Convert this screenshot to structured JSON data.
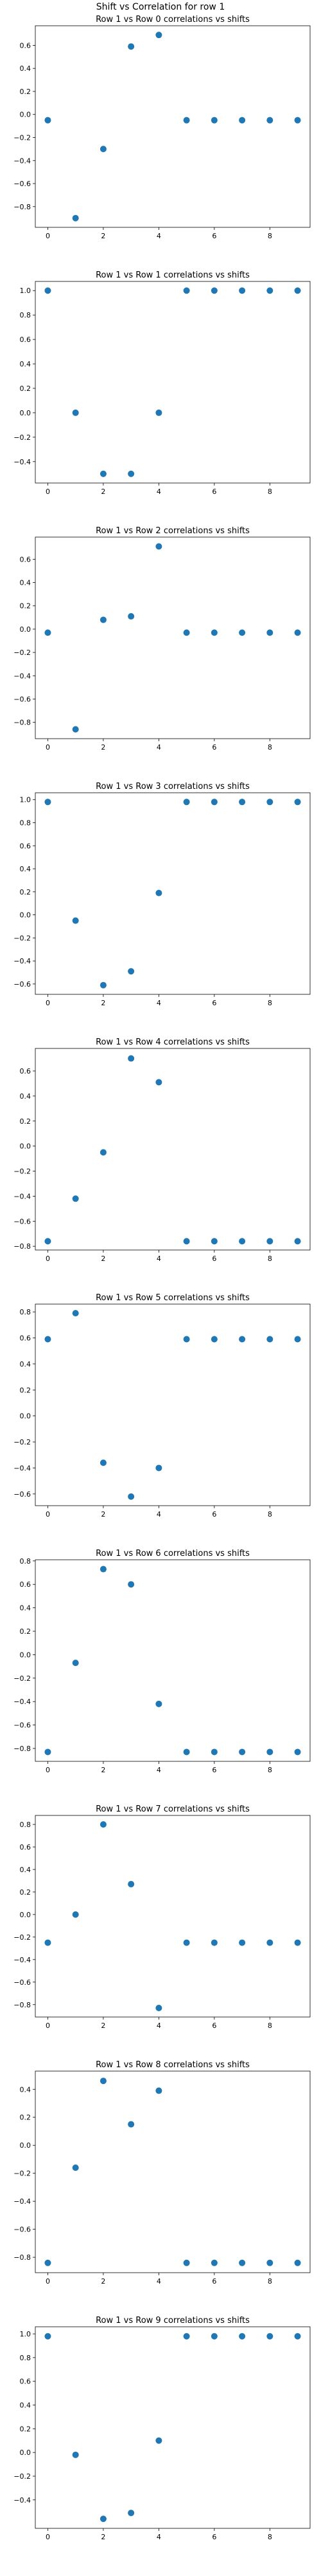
{
  "figure": {
    "suptitle": "Shift vs Correlation for row 1",
    "marker_color": "#1f77b4"
  },
  "chart_data": [
    {
      "type": "scatter",
      "title": "Row 1 vs Row 0 correlations vs shifts",
      "x": [
        0,
        1,
        2,
        3,
        4,
        5,
        6,
        7,
        8,
        9
      ],
      "y": [
        -0.05,
        -0.9,
        -0.3,
        0.59,
        0.69,
        -0.05,
        -0.05,
        -0.05,
        -0.05,
        -0.05
      ],
      "xlim": [
        -0.45,
        9.45
      ],
      "ylim": [
        -0.98,
        0.77
      ],
      "xticks": [
        0,
        2,
        4,
        6,
        8
      ],
      "yticks": [
        -0.8,
        -0.6,
        -0.4,
        -0.2,
        0.0,
        0.2,
        0.4,
        0.6
      ],
      "ytick_labels": [
        "−0.8",
        "−0.6",
        "−0.4",
        "−0.2",
        "0.0",
        "0.2",
        "0.4",
        "0.6"
      ]
    },
    {
      "type": "scatter",
      "title": "Row 1 vs Row 1 correlations vs shifts",
      "x": [
        0,
        1,
        2,
        3,
        4,
        5,
        6,
        7,
        8,
        9
      ],
      "y": [
        1.0,
        0.0,
        -0.5,
        -0.5,
        0.0,
        1.0,
        1.0,
        1.0,
        1.0,
        1.0
      ],
      "xlim": [
        -0.45,
        9.45
      ],
      "ylim": [
        -0.575,
        1.075
      ],
      "xticks": [
        0,
        2,
        4,
        6,
        8
      ],
      "yticks": [
        -0.4,
        -0.2,
        0.0,
        0.2,
        0.4,
        0.6,
        0.8,
        1.0
      ],
      "ytick_labels": [
        "−0.4",
        "−0.2",
        "0.0",
        "0.2",
        "0.4",
        "0.6",
        "0.8",
        "1.0"
      ]
    },
    {
      "type": "scatter",
      "title": "Row 1 vs Row 2 correlations vs shifts",
      "x": [
        0,
        1,
        2,
        3,
        4,
        5,
        6,
        7,
        8,
        9
      ],
      "y": [
        -0.03,
        -0.86,
        0.08,
        0.11,
        0.71,
        -0.03,
        -0.03,
        -0.03,
        -0.03,
        -0.03
      ],
      "xlim": [
        -0.45,
        9.45
      ],
      "ylim": [
        -0.94,
        0.79
      ],
      "xticks": [
        0,
        2,
        4,
        6,
        8
      ],
      "yticks": [
        -0.8,
        -0.6,
        -0.4,
        -0.2,
        0.0,
        0.2,
        0.4,
        0.6
      ],
      "ytick_labels": [
        "−0.8",
        "−0.6",
        "−0.4",
        "−0.2",
        "0.0",
        "0.2",
        "0.4",
        "0.6"
      ]
    },
    {
      "type": "scatter",
      "title": "Row 1 vs Row 3 correlations vs shifts",
      "x": [
        0,
        1,
        2,
        3,
        4,
        5,
        6,
        7,
        8,
        9
      ],
      "y": [
        0.98,
        -0.05,
        -0.61,
        -0.49,
        0.19,
        0.98,
        0.98,
        0.98,
        0.98,
        0.98
      ],
      "xlim": [
        -0.45,
        9.45
      ],
      "ylim": [
        -0.69,
        1.06
      ],
      "xticks": [
        0,
        2,
        4,
        6,
        8
      ],
      "yticks": [
        -0.6,
        -0.4,
        -0.2,
        0.0,
        0.2,
        0.4,
        0.6,
        0.8,
        1.0
      ],
      "ytick_labels": [
        "−0.6",
        "−0.4",
        "−0.2",
        "0.0",
        "0.2",
        "0.4",
        "0.6",
        "0.8",
        "1.0"
      ]
    },
    {
      "type": "scatter",
      "title": "Row 1 vs Row 4 correlations vs shifts",
      "x": [
        0,
        1,
        2,
        3,
        4,
        5,
        6,
        7,
        8,
        9
      ],
      "y": [
        -0.76,
        -0.42,
        -0.05,
        0.7,
        0.51,
        -0.76,
        -0.76,
        -0.76,
        -0.76,
        -0.76
      ],
      "xlim": [
        -0.45,
        9.45
      ],
      "ylim": [
        -0.83,
        0.78
      ],
      "xticks": [
        0,
        2,
        4,
        6,
        8
      ],
      "yticks": [
        -0.8,
        -0.6,
        -0.4,
        -0.2,
        0.0,
        0.2,
        0.4,
        0.6
      ],
      "ytick_labels": [
        "−0.8",
        "−0.6",
        "−0.4",
        "−0.2",
        "0.0",
        "0.2",
        "0.4",
        "0.6"
      ]
    },
    {
      "type": "scatter",
      "title": "Row 1 vs Row 5 correlations vs shifts",
      "x": [
        0,
        1,
        2,
        3,
        4,
        5,
        6,
        7,
        8,
        9
      ],
      "y": [
        0.59,
        0.79,
        -0.36,
        -0.62,
        -0.4,
        0.59,
        0.59,
        0.59,
        0.59,
        0.59
      ],
      "xlim": [
        -0.45,
        9.45
      ],
      "ylim": [
        -0.69,
        0.86
      ],
      "xticks": [
        0,
        2,
        4,
        6,
        8
      ],
      "yticks": [
        -0.6,
        -0.4,
        -0.2,
        0.0,
        0.2,
        0.4,
        0.6,
        0.8
      ],
      "ytick_labels": [
        "−0.6",
        "−0.4",
        "−0.2",
        "0.0",
        "0.2",
        "0.4",
        "0.6",
        "0.8"
      ]
    },
    {
      "type": "scatter",
      "title": "Row 1 vs Row 6 correlations vs shifts",
      "x": [
        0,
        1,
        2,
        3,
        4,
        5,
        6,
        7,
        8,
        9
      ],
      "y": [
        -0.83,
        -0.07,
        0.73,
        0.6,
        -0.42,
        -0.83,
        -0.83,
        -0.83,
        -0.83,
        -0.83
      ],
      "xlim": [
        -0.45,
        9.45
      ],
      "ylim": [
        -0.91,
        0.81
      ],
      "xticks": [
        0,
        2,
        4,
        6,
        8
      ],
      "yticks": [
        -0.8,
        -0.6,
        -0.4,
        -0.2,
        0.0,
        0.2,
        0.4,
        0.6,
        0.8
      ],
      "ytick_labels": [
        "−0.8",
        "−0.6",
        "−0.4",
        "−0.2",
        "0.0",
        "0.2",
        "0.4",
        "0.6",
        "0.8"
      ]
    },
    {
      "type": "scatter",
      "title": "Row 1 vs Row 7 correlations vs shifts",
      "x": [
        0,
        1,
        2,
        3,
        4,
        5,
        6,
        7,
        8,
        9
      ],
      "y": [
        -0.25,
        0.0,
        0.8,
        0.27,
        -0.83,
        -0.25,
        -0.25,
        -0.25,
        -0.25,
        -0.25
      ],
      "xlim": [
        -0.45,
        9.45
      ],
      "ylim": [
        -0.91,
        0.88
      ],
      "xticks": [
        0,
        2,
        4,
        6,
        8
      ],
      "yticks": [
        -0.8,
        -0.6,
        -0.4,
        -0.2,
        0.0,
        0.2,
        0.4,
        0.6,
        0.8
      ],
      "ytick_labels": [
        "−0.8",
        "−0.6",
        "−0.4",
        "−0.2",
        "0.0",
        "0.2",
        "0.4",
        "0.6",
        "0.8"
      ]
    },
    {
      "type": "scatter",
      "title": "Row 1 vs Row 8 correlations vs shifts",
      "x": [
        0,
        1,
        2,
        3,
        4,
        5,
        6,
        7,
        8,
        9
      ],
      "y": [
        -0.84,
        -0.16,
        0.46,
        0.15,
        0.39,
        -0.84,
        -0.84,
        -0.84,
        -0.84,
        -0.84
      ],
      "xlim": [
        -0.45,
        9.45
      ],
      "ylim": [
        -0.91,
        0.53
      ],
      "xticks": [
        0,
        2,
        4,
        6,
        8
      ],
      "yticks": [
        -0.8,
        -0.6,
        -0.4,
        -0.2,
        0.0,
        0.2,
        0.4
      ],
      "ytick_labels": [
        "−0.8",
        "−0.6",
        "−0.4",
        "−0.2",
        "0.0",
        "0.2",
        "0.4"
      ]
    },
    {
      "type": "scatter",
      "title": "Row 1 vs Row 9 correlations vs shifts",
      "x": [
        0,
        1,
        2,
        3,
        4,
        5,
        6,
        7,
        8,
        9
      ],
      "y": [
        0.98,
        -0.02,
        -0.56,
        -0.51,
        0.1,
        0.98,
        0.98,
        0.98,
        0.98,
        0.98
      ],
      "xlim": [
        -0.45,
        9.45
      ],
      "ylim": [
        -0.64,
        1.06
      ],
      "xticks": [
        0,
        2,
        4,
        6,
        8
      ],
      "yticks": [
        -0.4,
        -0.2,
        0.0,
        0.2,
        0.4,
        0.6,
        0.8,
        1.0
      ],
      "ytick_labels": [
        "−0.4",
        "−0.2",
        "0.0",
        "0.2",
        "0.4",
        "0.6",
        "0.8",
        "1.0"
      ]
    }
  ]
}
